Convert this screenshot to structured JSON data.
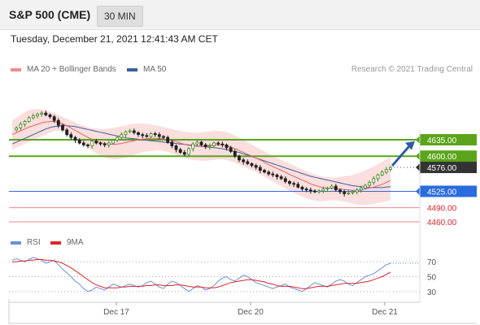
{
  "header": {
    "title": "S&P 500 (CME)",
    "timeframe": "30 MIN"
  },
  "timestamp": "Tuesday, December 21, 2021 12:41:43 AM CET",
  "legend": {
    "bollinger": {
      "label": "MA 20 + Bollinger Bands",
      "color": "#f08c8c"
    },
    "ma50": {
      "label": "MA 50",
      "color": "#3d5f9e"
    },
    "credit": "Research © 2021 Trading Central"
  },
  "rsi_legend": {
    "rsi": {
      "label": "RSI",
      "color": "#6b8fdc"
    },
    "ma9": {
      "label": "9MA",
      "color": "#e0242a"
    }
  },
  "chart_data": [
    {
      "type": "candlestick",
      "title": "S&P 500 (CME)",
      "x_labels": [
        "Dec 17",
        "Dec 20",
        "Dec 21"
      ],
      "ylim": [
        4450,
        4680
      ],
      "current_price": 4576.0,
      "levels": [
        {
          "value": 4635.0,
          "label": "4635.00",
          "kind": "resistance",
          "color": "#5aa51a"
        },
        {
          "value": 4600.0,
          "label": "4600.00",
          "kind": "resistance",
          "color": "#5aa51a"
        },
        {
          "value": 4576.0,
          "label": "4576.00",
          "kind": "last",
          "color": "#333333"
        },
        {
          "value": 4525.0,
          "label": "4525.00",
          "kind": "pivot",
          "color": "#2a6bde"
        },
        {
          "value": 4490.0,
          "label": "4490.00",
          "kind": "support",
          "color": "#e0242a"
        },
        {
          "value": 4460.0,
          "label": "4460.00",
          "kind": "support",
          "color": "#e0242a"
        }
      ],
      "price_path": [
        4656,
        4660,
        4668,
        4674,
        4682,
        4686,
        4690,
        4692,
        4688,
        4684,
        4676,
        4666,
        4656,
        4646,
        4640,
        4634,
        4628,
        4624,
        4622,
        4632,
        4628,
        4626,
        4624,
        4628,
        4634,
        4640,
        4646,
        4652,
        4654,
        4650,
        4646,
        4644,
        4642,
        4648,
        4646,
        4642,
        4640,
        4630,
        4622,
        4614,
        4608,
        4604,
        4616,
        4626,
        4630,
        4624,
        4620,
        4622,
        4628,
        4626,
        4624,
        4618,
        4610,
        4600,
        4592,
        4588,
        4584,
        4580,
        4576,
        4570,
        4566,
        4562,
        4560,
        4556,
        4552,
        4546,
        4542,
        4540,
        4534,
        4530,
        4528,
        4526,
        4524,
        4526,
        4530,
        4532,
        4536,
        4528,
        4524,
        4520,
        4522,
        4524,
        4528,
        4532,
        4538,
        4544,
        4552,
        4560,
        4566,
        4572,
        4576
      ],
      "ma20": [
        4646,
        4650,
        4654,
        4658,
        4662,
        4665,
        4668,
        4671,
        4673,
        4674,
        4674,
        4672,
        4669,
        4665,
        4660,
        4655,
        4650,
        4645,
        4640,
        4636,
        4632,
        4629,
        4627,
        4626,
        4625,
        4626,
        4627,
        4629,
        4631,
        4633,
        4635,
        4636,
        4637,
        4638,
        4638,
        4638,
        4637,
        4635,
        4633,
        4631,
        4628,
        4625,
        4623,
        4622,
        4621,
        4621,
        4622,
        4623,
        4624,
        4624,
        4624,
        4622,
        4619,
        4616,
        4612,
        4608,
        4604,
        4600,
        4596,
        4592,
        4587,
        4582,
        4578,
        4574,
        4570,
        4566,
        4561,
        4557,
        4553,
        4549,
        4545,
        4541,
        4538,
        4535,
        4533,
        4532,
        4532,
        4531,
        4530,
        4529,
        4528,
        4527,
        4527,
        4528,
        4530,
        4532,
        4534,
        4537,
        4540,
        4544,
        4548
      ],
      "ma50": [
        4626,
        4630,
        4634,
        4638,
        4642,
        4646,
        4650,
        4654,
        4658,
        4661,
        4663,
        4664,
        4665,
        4665,
        4664,
        4663,
        4661,
        4659,
        4657,
        4655,
        4653,
        4651,
        4649,
        4647,
        4645,
        4643,
        4641,
        4639,
        4638,
        4637,
        4636,
        4635,
        4634,
        4633,
        4632,
        4631,
        4630,
        4629,
        4628,
        4627,
        4626,
        4625,
        4624,
        4623,
        4622,
        4621,
        4620,
        4619,
        4618,
        4617,
        4616,
        4614,
        4612,
        4610,
        4608,
        4605,
        4602,
        4599,
        4596,
        4593,
        4590,
        4587,
        4584,
        4581,
        4578,
        4575,
        4572,
        4569,
        4566,
        4563,
        4560,
        4557,
        4555,
        4553,
        4551,
        4549,
        4547,
        4545,
        4543,
        4541,
        4539,
        4537,
        4536,
        4535,
        4534,
        4533,
        4533,
        4533,
        4533,
        4534,
        4535
      ],
      "bollinger_upper": [
        4676,
        4682,
        4688,
        4694,
        4698,
        4700,
        4701,
        4700,
        4698,
        4695,
        4692,
        4688,
        4684,
        4680,
        4676,
        4672,
        4668,
        4665,
        4662,
        4660,
        4659,
        4658,
        4658,
        4659,
        4660,
        4662,
        4664,
        4666,
        4668,
        4669,
        4670,
        4670,
        4669,
        4668,
        4666,
        4664,
        4662,
        4660,
        4658,
        4656,
        4654,
        4652,
        4651,
        4650,
        4650,
        4651,
        4652,
        4653,
        4654,
        4654,
        4653,
        4651,
        4648,
        4644,
        4640,
        4635,
        4630,
        4625,
        4620,
        4615,
        4610,
        4605,
        4600,
        4596,
        4592,
        4588,
        4584,
        4580,
        4576,
        4572,
        4568,
        4564,
        4561,
        4558,
        4556,
        4555,
        4555,
        4555,
        4556,
        4557,
        4558,
        4560,
        4563,
        4566,
        4570,
        4574,
        4578,
        4583,
        4588,
        4593,
        4598
      ],
      "bollinger_lower": [
        4614,
        4618,
        4622,
        4626,
        4630,
        4634,
        4638,
        4642,
        4646,
        4650,
        4654,
        4654,
        4652,
        4648,
        4642,
        4636,
        4630,
        4624,
        4618,
        4612,
        4606,
        4601,
        4597,
        4595,
        4594,
        4594,
        4595,
        4597,
        4600,
        4603,
        4606,
        4608,
        4610,
        4611,
        4612,
        4612,
        4611,
        4609,
        4606,
        4603,
        4600,
        4597,
        4594,
        4592,
        4591,
        4590,
        4590,
        4591,
        4592,
        4593,
        4593,
        4592,
        4589,
        4586,
        4582,
        4578,
        4574,
        4570,
        4566,
        4561,
        4556,
        4551,
        4546,
        4541,
        4536,
        4531,
        4526,
        4522,
        4518,
        4514,
        4510,
        4507,
        4505,
        4504,
        4504,
        4505,
        4506,
        4506,
        4505,
        4503,
        4501,
        4499,
        4497,
        4496,
        4496,
        4497,
        4498,
        4500,
        4502,
        4504,
        4506
      ],
      "forecast_arrow": {
        "from": 4576,
        "to": 4632
      }
    },
    {
      "type": "line",
      "title": "RSI",
      "ylim": [
        20,
        80
      ],
      "y_ticks": [
        70,
        50,
        30
      ],
      "series": [
        {
          "name": "RSI",
          "color": "#6b8fdc",
          "values": [
            72,
            74,
            72,
            70,
            73,
            76,
            74,
            72,
            68,
            70,
            72,
            66,
            60,
            55,
            50,
            44,
            40,
            34,
            30,
            32,
            36,
            34,
            32,
            36,
            40,
            38,
            36,
            38,
            40,
            38,
            36,
            38,
            42,
            44,
            40,
            36,
            34,
            40,
            44,
            42,
            38,
            34,
            30,
            34,
            38,
            36,
            32,
            34,
            38,
            44,
            48,
            50,
            46,
            44,
            48,
            52,
            50,
            46,
            42,
            40,
            38,
            36,
            34,
            36,
            38,
            40,
            36,
            34,
            32,
            30,
            34,
            38,
            42,
            40,
            38,
            36,
            40,
            44,
            46,
            44,
            40,
            38,
            42,
            46,
            50,
            52,
            54,
            58,
            62,
            66,
            68
          ]
        },
        {
          "name": "9MA",
          "color": "#e0242a",
          "values": [
            70,
            70,
            71,
            71,
            72,
            72,
            73,
            73,
            72,
            72,
            71,
            70,
            68,
            65,
            62,
            58,
            54,
            50,
            46,
            42,
            39,
            37,
            35,
            35,
            35,
            35,
            36,
            36,
            37,
            37,
            37,
            37,
            38,
            38,
            39,
            39,
            38,
            38,
            38,
            39,
            39,
            38,
            37,
            36,
            36,
            36,
            35,
            35,
            35,
            36,
            38,
            40,
            42,
            43,
            44,
            45,
            46,
            46,
            45,
            44,
            43,
            41,
            40,
            38,
            37,
            37,
            37,
            36,
            35,
            34,
            34,
            35,
            36,
            37,
            37,
            37,
            38,
            39,
            40,
            41,
            41,
            41,
            41,
            42,
            43,
            44,
            46,
            48,
            50,
            53,
            56
          ]
        }
      ]
    }
  ]
}
